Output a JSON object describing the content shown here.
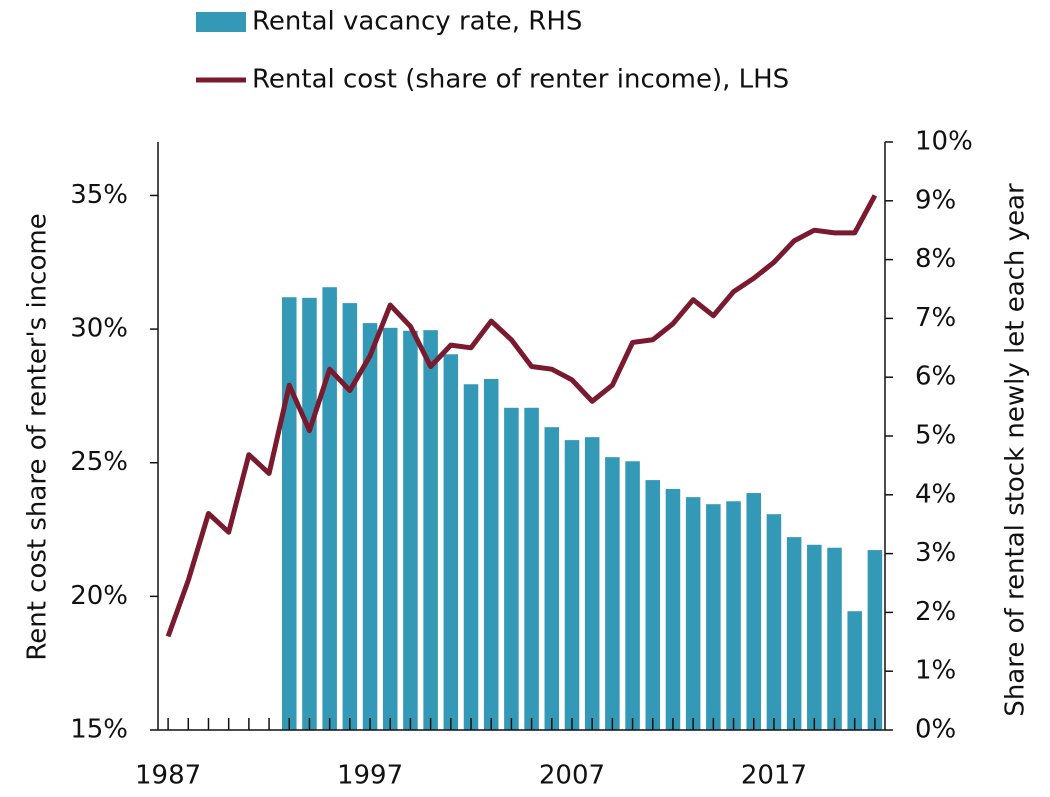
{
  "chart_data": {
    "type": "bar-line",
    "x": [
      1987,
      1988,
      1989,
      1990,
      1991,
      1992,
      1993,
      1994,
      1995,
      1996,
      1997,
      1998,
      1999,
      2000,
      2001,
      2002,
      2003,
      2004,
      2005,
      2006,
      2007,
      2008,
      2009,
      2010,
      2011,
      2012,
      2013,
      2014,
      2015,
      2016,
      2017,
      2018,
      2019,
      2020,
      2021,
      2022
    ],
    "xlim": [
      1986.5,
      2022.5
    ],
    "xticks": [
      1987,
      1997,
      2007,
      2017
    ],
    "ylim": [
      15,
      37
    ],
    "yticks": [
      {
        "value": 15,
        "label": "15%"
      },
      {
        "value": 20,
        "label": "20%"
      },
      {
        "value": 25,
        "label": "25%"
      },
      {
        "value": 30,
        "label": "30%"
      },
      {
        "value": 35,
        "label": "35%"
      }
    ],
    "y2lim": [
      0,
      10
    ],
    "y2ticks": [
      {
        "value": 0,
        "label": "0%"
      },
      {
        "value": 1,
        "label": "1%"
      },
      {
        "value": 2,
        "label": "2%"
      },
      {
        "value": 3,
        "label": "3%"
      },
      {
        "value": 4,
        "label": "4%"
      },
      {
        "value": 5,
        "label": "5%"
      },
      {
        "value": 6,
        "label": "6%"
      },
      {
        "value": 7,
        "label": "7%"
      },
      {
        "value": 8,
        "label": "8%"
      },
      {
        "value": 9,
        "label": "9%"
      },
      {
        "value": 10,
        "label": "10%"
      }
    ],
    "ylabel": "Rent cost share of renter's income",
    "y2label": "Share of rental stock newly let each year",
    "series": [
      {
        "name": "Rental vacancy rate, RHS",
        "type": "bar",
        "axis": "y2",
        "color": "#3499b6",
        "values": [
          null,
          null,
          null,
          null,
          null,
          null,
          7.36,
          7.35,
          7.53,
          7.26,
          6.92,
          6.84,
          6.79,
          6.8,
          6.39,
          5.88,
          5.97,
          5.48,
          5.48,
          5.15,
          4.93,
          4.98,
          4.64,
          4.57,
          4.25,
          4.1,
          3.96,
          3.84,
          3.89,
          4.03,
          3.67,
          3.28,
          3.15,
          3.1,
          2.02,
          3.06
        ]
      },
      {
        "name": "Rental cost (share of renter income), LHS",
        "type": "line",
        "axis": "y",
        "color": "#7a1a2f",
        "values": [
          18.5,
          20.6,
          23.1,
          22.4,
          25.3,
          24.6,
          27.9,
          26.2,
          28.5,
          27.7,
          29.0,
          30.9,
          30.1,
          28.6,
          29.4,
          29.3,
          30.3,
          29.6,
          28.6,
          28.5,
          28.1,
          27.3,
          27.9,
          29.5,
          29.6,
          30.2,
          31.1,
          30.5,
          31.4,
          31.9,
          32.5,
          33.3,
          33.7,
          33.6,
          33.6,
          35.0
        ]
      }
    ]
  }
}
